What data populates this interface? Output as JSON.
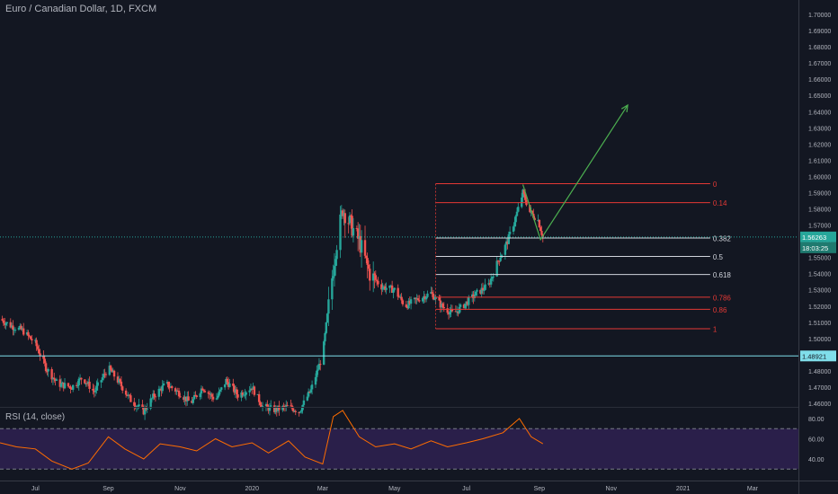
{
  "header": {
    "title": "Euro / Canadian Dollar, 1D, FXCM"
  },
  "rsi": {
    "label": "RSI (14, close)",
    "ticks": [
      "80.00",
      "60.00",
      "40.00"
    ],
    "levels": [
      30,
      70
    ]
  },
  "price_badges": {
    "last": "1.56263",
    "countdown": "18:03:25",
    "support": "1.48921"
  },
  "colors": {
    "background": "#131722",
    "up": "#26a69a",
    "down": "#ef5350",
    "fib_red": "#e53935",
    "fib_white": "#d1d4dc",
    "projection": "#4caf50",
    "rsi_line": "#ff6d00",
    "rsi_band": "#2a1f4a",
    "support": "#80deea"
  },
  "chart_data": {
    "type": "candlestick",
    "title": "Euro / Canadian Dollar, 1D, FXCM",
    "ylim": [
      1.455,
      1.705
    ],
    "y_ticks": [
      "1.70000",
      "1.69000",
      "1.68000",
      "1.67000",
      "1.66000",
      "1.65000",
      "1.64000",
      "1.63000",
      "1.62000",
      "1.61000",
      "1.60000",
      "1.59000",
      "1.58000",
      "1.57000",
      "1.56000",
      "1.55000",
      "1.54000",
      "1.53000",
      "1.52000",
      "1.51000",
      "1.50000",
      "1.49000",
      "1.48000",
      "1.47000",
      "1.46000"
    ],
    "x_ticks": [
      "Jul",
      "Sep",
      "Nov",
      "2020",
      "Mar",
      "May",
      "Jul",
      "Sep",
      "Nov",
      "2021",
      "Mar"
    ],
    "last_price": 1.56263,
    "support_level": 1.48921,
    "price_path": [
      [
        "2019-06-01",
        1.512
      ],
      [
        "2019-06-10",
        1.508
      ],
      [
        "2019-06-20",
        1.505
      ],
      [
        "2019-07-01",
        1.497
      ],
      [
        "2019-07-10",
        1.482
      ],
      [
        "2019-07-20",
        1.472
      ],
      [
        "2019-08-01",
        1.47
      ],
      [
        "2019-08-10",
        1.476
      ],
      [
        "2019-08-20",
        1.467
      ],
      [
        "2019-09-01",
        1.482
      ],
      [
        "2019-09-10",
        1.473
      ],
      [
        "2019-09-20",
        1.462
      ],
      [
        "2019-10-01",
        1.455
      ],
      [
        "2019-10-10",
        1.465
      ],
      [
        "2019-10-20",
        1.472
      ],
      [
        "2019-11-01",
        1.466
      ],
      [
        "2019-11-10",
        1.46
      ],
      [
        "2019-11-20",
        1.47
      ],
      [
        "2019-12-01",
        1.462
      ],
      [
        "2019-12-10",
        1.474
      ],
      [
        "2019-12-20",
        1.465
      ],
      [
        "2020-01-01",
        1.47
      ],
      [
        "2020-01-10",
        1.458
      ],
      [
        "2020-01-20",
        1.456
      ],
      [
        "2020-02-01",
        1.458
      ],
      [
        "2020-02-10",
        1.455
      ],
      [
        "2020-02-20",
        1.468
      ],
      [
        "2020-03-01",
        1.49
      ],
      [
        "2020-03-06",
        1.52
      ],
      [
        "2020-03-12",
        1.555
      ],
      [
        "2020-03-18",
        1.58
      ],
      [
        "2020-03-25",
        1.57
      ],
      [
        "2020-04-01",
        1.56
      ],
      [
        "2020-04-10",
        1.54
      ],
      [
        "2020-04-20",
        1.532
      ],
      [
        "2020-05-01",
        1.53
      ],
      [
        "2020-05-10",
        1.52
      ],
      [
        "2020-05-20",
        1.524
      ],
      [
        "2020-06-01",
        1.528
      ],
      [
        "2020-06-10",
        1.52
      ],
      [
        "2020-06-20",
        1.515
      ],
      [
        "2020-07-01",
        1.522
      ],
      [
        "2020-07-10",
        1.528
      ],
      [
        "2020-07-20",
        1.533
      ],
      [
        "2020-07-28",
        1.548
      ],
      [
        "2020-08-05",
        1.56
      ],
      [
        "2020-08-12",
        1.575
      ],
      [
        "2020-08-18",
        1.59
      ],
      [
        "2020-08-24",
        1.578
      ],
      [
        "2020-08-31",
        1.573
      ],
      [
        "2020-09-04",
        1.5626
      ]
    ],
    "fibonacci": {
      "start_date": "2020-06-05",
      "end_date": "2020-09-01",
      "levels": [
        {
          "label": "0",
          "price": 1.5955,
          "color": "red"
        },
        {
          "label": "0.14",
          "price": 1.5838,
          "color": "red"
        },
        {
          "label": "0.382",
          "price": 1.562,
          "color": "white"
        },
        {
          "label": "0.5",
          "price": 1.5506,
          "color": "white"
        },
        {
          "label": "0.618",
          "price": 1.5395,
          "color": "white"
        },
        {
          "label": "0.786",
          "price": 1.5255,
          "color": "red"
        },
        {
          "label": "0.86",
          "price": 1.518,
          "color": "red"
        },
        {
          "label": "1",
          "price": 1.506,
          "color": "red"
        }
      ]
    },
    "projection": [
      [
        "2020-08-18",
        1.595
      ],
      [
        "2020-09-02",
        1.561
      ],
      [
        "2020-11-15",
        1.644
      ]
    ],
    "rsi": {
      "name": "RSI (14, close)",
      "ylim": [
        25,
        90
      ],
      "values": [
        [
          "2019-06-01",
          56
        ],
        [
          "2019-06-15",
          52
        ],
        [
          "2019-07-01",
          50
        ],
        [
          "2019-07-15",
          38
        ],
        [
          "2019-08-01",
          30
        ],
        [
          "2019-08-15",
          36
        ],
        [
          "2019-09-01",
          62
        ],
        [
          "2019-09-15",
          50
        ],
        [
          "2019-10-01",
          40
        ],
        [
          "2019-10-15",
          55
        ],
        [
          "2019-11-01",
          52
        ],
        [
          "2019-11-15",
          48
        ],
        [
          "2019-12-01",
          60
        ],
        [
          "2019-12-15",
          52
        ],
        [
          "2020-01-01",
          56
        ],
        [
          "2020-01-15",
          46
        ],
        [
          "2020-02-01",
          58
        ],
        [
          "2020-02-15",
          42
        ],
        [
          "2020-03-01",
          35
        ],
        [
          "2020-03-10",
          82
        ],
        [
          "2020-03-18",
          88
        ],
        [
          "2020-04-01",
          62
        ],
        [
          "2020-04-15",
          52
        ],
        [
          "2020-05-01",
          55
        ],
        [
          "2020-05-15",
          50
        ],
        [
          "2020-06-01",
          58
        ],
        [
          "2020-06-15",
          52
        ],
        [
          "2020-07-01",
          56
        ],
        [
          "2020-07-15",
          60
        ],
        [
          "2020-08-01",
          66
        ],
        [
          "2020-08-15",
          80
        ],
        [
          "2020-08-25",
          62
        ],
        [
          "2020-09-04",
          55
        ]
      ]
    }
  }
}
